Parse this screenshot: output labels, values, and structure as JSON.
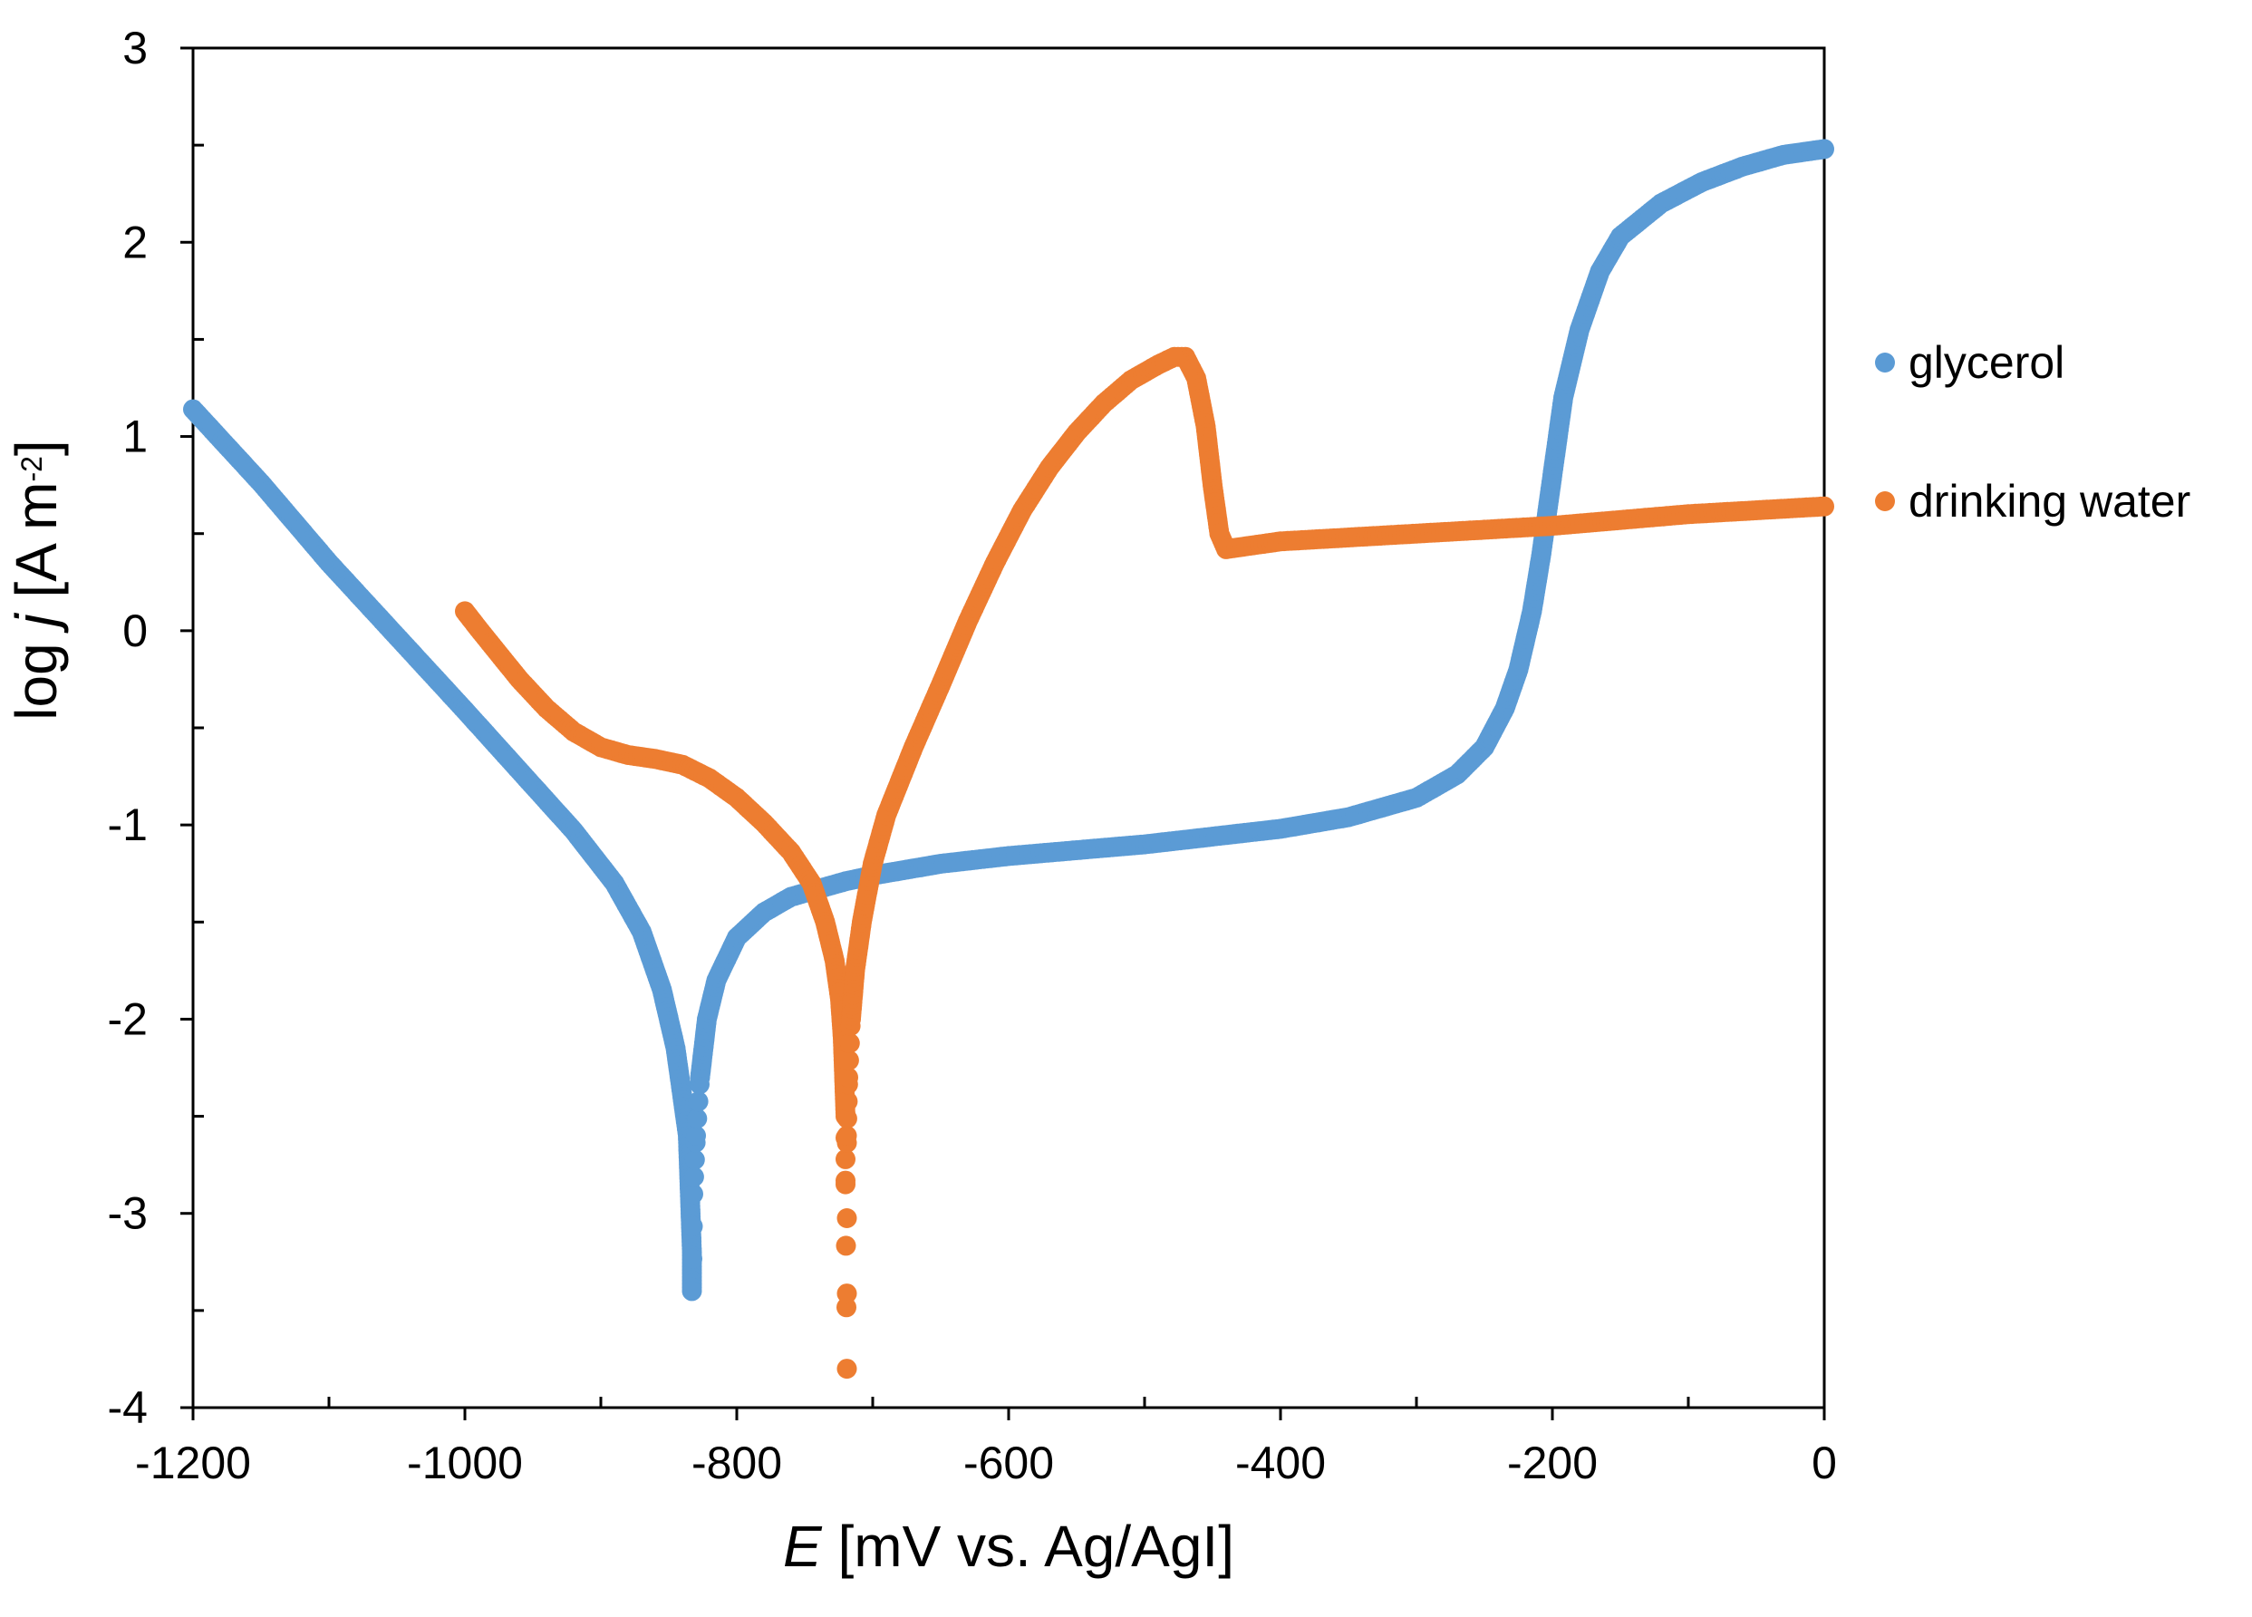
{
  "chart_data": {
    "type": "scatter",
    "title": "",
    "xlabel": {
      "italic": "E",
      "text": " [mV vs. Ag/AgI]"
    },
    "ylabel": {
      "prefix": "log ",
      "italic": "j",
      "unit": " [A m",
      "sup": "-2",
      "close": "]"
    },
    "xlim": [
      -1200,
      0
    ],
    "ylim": [
      -4,
      3
    ],
    "xticks": [
      -1200,
      -1000,
      -800,
      -600,
      -400,
      -200,
      0
    ],
    "xtick_labels": [
      "-1200",
      "-1000",
      "-800",
      "-600",
      "-400",
      "-200",
      "0"
    ],
    "yticks": [
      3,
      2,
      1,
      0,
      -1,
      -2,
      -3,
      -4
    ],
    "ytick_labels": [
      "3",
      "2",
      "1",
      "0",
      "-1",
      "-2",
      "-3",
      "-4"
    ],
    "grid": false,
    "legend_position": "right",
    "series": [
      {
        "name": "glycerol",
        "color": "#5b9bd5",
        "points": [
          [
            -1200,
            1.14
          ],
          [
            -1150,
            0.76
          ],
          [
            -1100,
            0.35
          ],
          [
            -1050,
            -0.03
          ],
          [
            -1000,
            -0.41
          ],
          [
            -960,
            -0.72
          ],
          [
            -920,
            -1.03
          ],
          [
            -890,
            -1.3
          ],
          [
            -870,
            -1.55
          ],
          [
            -855,
            -1.85
          ],
          [
            -845,
            -2.15
          ],
          [
            -840,
            -2.4
          ],
          [
            -836,
            -2.6
          ],
          [
            -835,
            -2.8
          ],
          [
            -834,
            -3.0
          ],
          [
            -833,
            -3.2
          ],
          [
            -833,
            -3.4
          ],
          [
            -832,
            -2.9
          ],
          [
            -830,
            -2.6
          ],
          [
            -827,
            -2.3
          ],
          [
            -822,
            -2.0
          ],
          [
            -815,
            -1.8
          ],
          [
            -800,
            -1.58
          ],
          [
            -780,
            -1.45
          ],
          [
            -760,
            -1.37
          ],
          [
            -720,
            -1.29
          ],
          [
            -700,
            -1.26
          ],
          [
            -650,
            -1.2
          ],
          [
            -600,
            -1.16
          ],
          [
            -550,
            -1.13
          ],
          [
            -500,
            -1.1
          ],
          [
            -450,
            -1.06
          ],
          [
            -400,
            -1.02
          ],
          [
            -350,
            -0.96
          ],
          [
            -300,
            -0.86
          ],
          [
            -270,
            -0.74
          ],
          [
            -250,
            -0.6
          ],
          [
            -235,
            -0.4
          ],
          [
            -225,
            -0.2
          ],
          [
            -215,
            0.1
          ],
          [
            -208,
            0.4
          ],
          [
            -200,
            0.8
          ],
          [
            -192,
            1.2
          ],
          [
            -180,
            1.55
          ],
          [
            -165,
            1.85
          ],
          [
            -150,
            2.03
          ],
          [
            -120,
            2.2
          ],
          [
            -90,
            2.31
          ],
          [
            -60,
            2.39
          ],
          [
            -30,
            2.45
          ],
          [
            0,
            2.48
          ]
        ]
      },
      {
        "name": "drinking water",
        "color": "#ed7d31",
        "points": [
          [
            -1000,
            0.1
          ],
          [
            -990,
            0.01
          ],
          [
            -975,
            -0.12
          ],
          [
            -960,
            -0.25
          ],
          [
            -940,
            -0.4
          ],
          [
            -920,
            -0.52
          ],
          [
            -900,
            -0.6
          ],
          [
            -880,
            -0.64
          ],
          [
            -860,
            -0.66
          ],
          [
            -840,
            -0.69
          ],
          [
            -820,
            -0.76
          ],
          [
            -800,
            -0.86
          ],
          [
            -780,
            -0.99
          ],
          [
            -760,
            -1.14
          ],
          [
            -745,
            -1.3
          ],
          [
            -735,
            -1.5
          ],
          [
            -728,
            -1.7
          ],
          [
            -724,
            -1.9
          ],
          [
            -722,
            -2.1
          ],
          [
            -721,
            -2.3
          ],
          [
            -720,
            -2.5
          ],
          [
            -720,
            -2.85
          ],
          [
            -719,
            -3.8
          ],
          [
            -719,
            -2.6
          ],
          [
            -718,
            -2.3
          ],
          [
            -716,
            -2.0
          ],
          [
            -713,
            -1.75
          ],
          [
            -708,
            -1.5
          ],
          [
            -700,
            -1.2
          ],
          [
            -690,
            -0.95
          ],
          [
            -670,
            -0.6
          ],
          [
            -650,
            -0.28
          ],
          [
            -630,
            0.05
          ],
          [
            -610,
            0.35
          ],
          [
            -590,
            0.62
          ],
          [
            -570,
            0.84
          ],
          [
            -550,
            1.02
          ],
          [
            -530,
            1.17
          ],
          [
            -510,
            1.29
          ],
          [
            -490,
            1.37
          ],
          [
            -478,
            1.41
          ],
          [
            -470,
            1.41
          ],
          [
            -462,
            1.3
          ],
          [
            -455,
            1.05
          ],
          [
            -450,
            0.75
          ],
          [
            -445,
            0.5
          ],
          [
            -440,
            0.42
          ],
          [
            -420,
            0.44
          ],
          [
            -400,
            0.46
          ],
          [
            -350,
            0.48
          ],
          [
            -300,
            0.5
          ],
          [
            -250,
            0.52
          ],
          [
            -200,
            0.54
          ],
          [
            -150,
            0.57
          ],
          [
            -100,
            0.6
          ],
          [
            -50,
            0.62
          ],
          [
            0,
            0.64
          ]
        ]
      }
    ]
  }
}
